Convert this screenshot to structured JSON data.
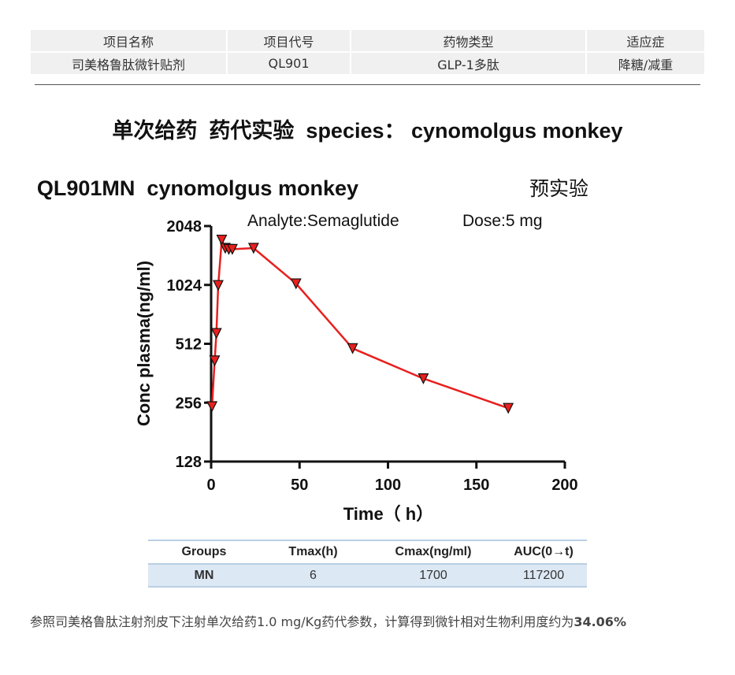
{
  "project_table": {
    "headers": [
      "项目名称",
      "项目代号",
      "药物类型",
      "适应症"
    ],
    "row": [
      "司美格鲁肽微针贴剂",
      "QL901",
      "GLP-1多肽",
      "降糖/减重"
    ]
  },
  "section_heading": "单次给药  药代实验  species： cynomolgus monkey",
  "chart_data": {
    "type": "line",
    "title": "QL901MN  cynomolgus monkey",
    "title_suffix": "预实验",
    "annotation_left": "Analyte:Semaglutide",
    "annotation_right": "Dose:5 mg",
    "xlabel": "Time（ h）",
    "ylabel": "Conc plasma(ng/ml)",
    "xlim": [
      0,
      200
    ],
    "x_ticks": [
      "0",
      "50",
      "100",
      "150",
      "200"
    ],
    "y_scale": "log2",
    "ylim": [
      128,
      2048
    ],
    "y_ticks": [
      "128",
      "256",
      "512",
      "1024",
      "2048"
    ],
    "marker": "down-triangle",
    "line_color": "#e8201e",
    "marker_color": "#e8201e",
    "series": [
      {
        "x": [
          0.5,
          2,
          3,
          4,
          6,
          8,
          10,
          12,
          24,
          48,
          80,
          120,
          168
        ],
        "y": [
          245,
          420,
          580,
          1020,
          1740,
          1580,
          1560,
          1560,
          1580,
          1040,
          485,
          340,
          240
        ]
      }
    ],
    "grid": false
  },
  "results_table": {
    "headers": [
      "Groups",
      "Tmax(h)",
      "Cmax(ng/ml)",
      "AUC(0→t)"
    ],
    "rows": [
      [
        "MN",
        "6",
        "1700",
        "117200"
      ]
    ]
  },
  "note": {
    "text": "参照司美格鲁肽注射剂皮下注射单次给药1.0 mg/Kg药代参数，计算得到微针相对生物利用度约为",
    "value": "34.06%"
  }
}
